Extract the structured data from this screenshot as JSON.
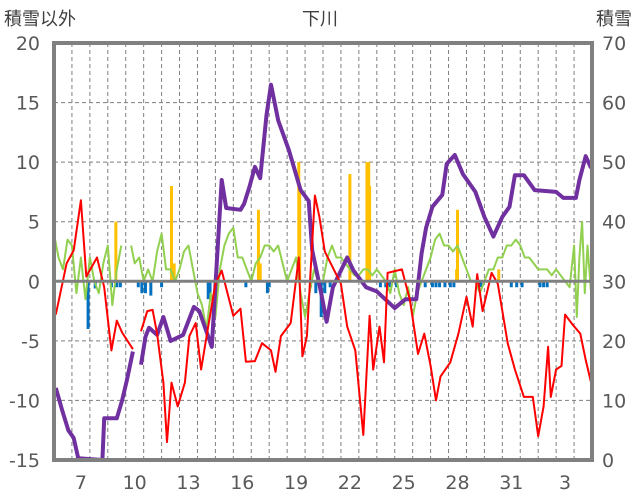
{
  "chart_data": {
    "type": "line",
    "title": "下川",
    "ylabel_left": "積雪以外",
    "ylabel_right": "積雪",
    "ylim_left": [
      -15,
      20
    ],
    "ylim_right": [
      0,
      70
    ],
    "yticks_left": [
      "20",
      "15",
      "10",
      "5",
      "0",
      "-5",
      "-10",
      "-15"
    ],
    "yticks_left_values": [
      20,
      15,
      10,
      5,
      0,
      -5,
      -10,
      -15
    ],
    "yticks_right": [
      "70",
      "60",
      "50",
      "40",
      "30",
      "20",
      "10",
      "0"
    ],
    "yticks_right_values": [
      70,
      60,
      50,
      40,
      30,
      20,
      10,
      0
    ],
    "xlim_days": [
      6,
      36
    ],
    "xticks": [
      "7",
      "10",
      "13",
      "16",
      "19",
      "22",
      "25",
      "28",
      "31",
      "3"
    ],
    "xticks_days": [
      7,
      10,
      13,
      16,
      19,
      22,
      25,
      28,
      31,
      34
    ],
    "grid": true,
    "colors": {
      "snow_depth": "#7030a0",
      "red_series": "#ff0000",
      "green_series": "#92d050",
      "positive_bars": "#ffc000",
      "negative_bars": "#0070c0",
      "axis": "#808080",
      "text": "#595959"
    },
    "series": [
      {
        "name": "snow_depth",
        "axis": "right",
        "x": [
          6.1,
          6.45,
          6.8,
          7.1,
          7.35,
          8.7,
          8.8,
          9.5,
          9.8,
          10.05,
          10.4,
          null,
          10.85,
          11.1,
          11.3,
          11.75,
          12.1,
          12.5,
          13.2,
          13.8,
          14.1,
          14.8,
          15.35,
          15.6,
          16.4,
          16.6,
          16.9,
          17.2,
          17.5,
          17.85,
          18.1,
          18.5,
          19.1,
          19.75,
          20.2,
          20.4,
          20.9,
          21.2,
          21.55,
          22.35,
          22.7,
          23.4,
          24,
          25,
          25.6,
          26.2,
          26.5,
          26.75,
          27.1,
          27.65,
          27.9,
          28.35,
          28.8,
          29.5,
          30,
          30.5,
          31,
          31.4,
          31.7,
          32.2,
          32.8,
          34,
          34.4,
          35.1,
          35.3,
          35.65,
          35.95
        ],
        "y": [
          12.1,
          8.4,
          5,
          3.7,
          0.3,
          0,
          7,
          7,
          10,
          13.2,
          18.2,
          null,
          16,
          20.7,
          22.2,
          21,
          24,
          20,
          21,
          25.7,
          25,
          19,
          47,
          42.3,
          42,
          43,
          45.9,
          49.2,
          47.3,
          57.9,
          63,
          57,
          52,
          45.3,
          43.5,
          35.2,
          28,
          23.2,
          29,
          34,
          31.8,
          29,
          28.3,
          25.5,
          27,
          27,
          34.7,
          39,
          42.5,
          44.5,
          49.7,
          51.2,
          48,
          45,
          40.8,
          37.5,
          40.8,
          42.5,
          47.8,
          47.8,
          45.3,
          45,
          44,
          44,
          47,
          51,
          49
        ]
      },
      {
        "name": "red_series",
        "axis": "left",
        "x": [
          6.1,
          6.7,
          7.1,
          7.5,
          7.8,
          8.4,
          8.8,
          9.2,
          9.5,
          9.8,
          10.4,
          null,
          10.85,
          11.2,
          11.5,
          11.75,
          12.1,
          12.3,
          12.55,
          12.9,
          13.3,
          13.55,
          13.9,
          14.2,
          14.6,
          15,
          15.35,
          16,
          16.4,
          16.7,
          17.2,
          17.6,
          18.1,
          18.35,
          18.65,
          19.2,
          19.65,
          19.85,
          20.1,
          20.55,
          20.8,
          21.1,
          22,
          22.35,
          22.8,
          23.25,
          23.6,
          23.8,
          24.15,
          24.4,
          24.6,
          25.4,
          25.85,
          26.3,
          26.65,
          27,
          27.3,
          27.55,
          28.1,
          28.55,
          29,
          29.35,
          29.6,
          29.9,
          30.4,
          30.75,
          31.3,
          31.7,
          32.2,
          32.7,
          33,
          33.3,
          33.55,
          33.7,
          34,
          34.3,
          34.5,
          34.9,
          35.35,
          35.65,
          35.95
        ],
        "y": [
          -2.8,
          1.5,
          2.6,
          6.8,
          0.4,
          2,
          -0.5,
          -5.8,
          -3.3,
          -4.3,
          -5.7,
          null,
          -4.2,
          -2.5,
          -2.4,
          -4.4,
          -8.5,
          -13.5,
          -8.5,
          -10.5,
          -8.5,
          -4.6,
          -3.5,
          -7.4,
          -3.8,
          -0.2,
          0.9,
          -2.9,
          -2.3,
          -6.75,
          -6.7,
          -5.2,
          -5.8,
          -7.6,
          -4.6,
          -3.5,
          2,
          -6.3,
          -4.6,
          7.2,
          5.4,
          2.5,
          -0.2,
          -3.8,
          -5.8,
          -12.9,
          -2.9,
          -7.4,
          -3.8,
          -6.8,
          0.7,
          1,
          -1.6,
          -6.1,
          -4.4,
          -7.1,
          -10,
          -8,
          -6.8,
          -4.4,
          -1.3,
          -3.8,
          0.6,
          -2.5,
          0.7,
          -0.2,
          -5.2,
          -7.4,
          -9.7,
          -9.7,
          -13,
          -10.5,
          -5.5,
          -9.7,
          -7.4,
          -7.1,
          -2.8,
          -3.6,
          -4.4,
          -6.6,
          -8.5
        ]
      },
      {
        "name": "green_series",
        "axis": "left",
        "x": [
          6,
          6.25,
          6.5,
          6.75,
          7,
          7.25,
          7.5,
          7.75,
          8,
          8.25,
          8.5,
          8.75,
          9,
          9.25,
          9.5,
          9.75,
          null,
          10.3,
          10.5,
          10.75,
          11,
          11.25,
          11.5,
          11.75,
          12,
          12.25,
          12.5,
          12.75,
          13,
          13.25,
          13.5,
          13.75,
          14,
          14.25,
          14.5,
          14.75,
          15,
          15.25,
          15.5,
          15.75,
          16,
          16.25,
          16.5,
          16.75,
          17,
          17.25,
          17.5,
          17.75,
          18,
          18.25,
          18.5,
          18.75,
          19,
          19.25,
          19.5,
          19.75,
          20,
          20.25,
          20.5,
          20.75,
          21,
          21.25,
          21.5,
          21.75,
          22,
          22.25,
          22.5,
          22.75,
          23,
          23.25,
          23.5,
          23.75,
          24,
          24.25,
          24.5,
          24.75,
          25,
          25.25,
          25.5,
          25.75,
          26,
          26.25,
          26.5,
          26.75,
          27,
          27.25,
          27.5,
          27.75,
          28,
          28.25,
          28.5,
          28.75,
          29,
          29.25,
          29.5,
          29.75,
          30,
          30.25,
          30.5,
          30.75,
          31,
          31.25,
          31.5,
          31.75,
          32,
          32.25,
          32.5,
          32.75,
          33,
          33.25,
          33.5,
          33.75,
          34,
          34.25,
          34.5,
          34.75,
          35,
          35.15,
          35.3,
          35.45,
          35.6,
          35.75,
          35.95
        ],
        "y": [
          4,
          2,
          1,
          3.5,
          3,
          -1,
          2,
          -1.5,
          2,
          0,
          -1,
          1.5,
          3,
          -2,
          1,
          3,
          null,
          3,
          1.5,
          2,
          0,
          1,
          0,
          2.5,
          4,
          1,
          1,
          0,
          1,
          2.5,
          3,
          1,
          -1,
          -2,
          -4,
          -1,
          -3,
          1,
          3,
          4,
          4.5,
          2,
          2,
          1,
          0,
          1.5,
          2,
          3,
          3,
          2.5,
          3,
          1.5,
          0,
          1,
          2,
          -1,
          -3,
          -1,
          1,
          0,
          0,
          2,
          3,
          2,
          2,
          1.5,
          1,
          0.5,
          0.5,
          1,
          1,
          0.5,
          1,
          0.5,
          0,
          -1,
          1,
          -1,
          -2,
          -0.5,
          -3,
          -1,
          0,
          1,
          2,
          3.5,
          4,
          3,
          3,
          2.5,
          3,
          2,
          1,
          0,
          0,
          -1,
          0,
          1,
          1,
          2,
          2,
          3,
          3,
          3.5,
          3,
          2,
          2,
          1.5,
          1,
          1,
          1,
          0.5,
          1,
          0.5,
          0,
          -0.5,
          3,
          -3,
          2,
          5,
          -1,
          3,
          -1
        ]
      },
      {
        "name": "positive_bars",
        "axis": "left",
        "type": "bar",
        "x": [
          9.45,
          12.55,
          12.7,
          17.4,
          17.5,
          19.65,
          19.7,
          22.5,
          23.45,
          23.55,
          23.6,
          28.45,
          28.5,
          30.8
        ],
        "y": [
          5,
          8,
          1.5,
          6,
          1.5,
          10,
          7.5,
          9,
          10,
          10,
          8,
          1,
          6,
          1
        ]
      },
      {
        "name": "negative_bars",
        "axis": "left",
        "type": "bar",
        "x": [
          7.9,
          8.3,
          9.2,
          9.5,
          9.7,
          10.7,
          10.9,
          11.1,
          11.4,
          12.0,
          14.6,
          14.7,
          16.7,
          17.9,
          18.0,
          20.3,
          20.6,
          20.9,
          21.1,
          21.4,
          24.2,
          24.5,
          24.7,
          25.1,
          26.7,
          27.1,
          27.3,
          27.5,
          27.8,
          28.1,
          28.3,
          29.8,
          31.5,
          31.8,
          32.1,
          33.1,
          33.3,
          33.5
        ],
        "y": [
          -4,
          -0.6,
          -0.5,
          -0.5,
          -0.5,
          -0.5,
          -1,
          -1,
          -1.2,
          -0.5,
          -1.5,
          -1,
          -0.5,
          -1,
          -0.5,
          -0.5,
          -1,
          -3,
          -1,
          -0.5,
          -0.5,
          -0.5,
          -0.5,
          -0.5,
          -0.5,
          -0.5,
          -0.5,
          -0.5,
          -0.5,
          -0.5,
          -0.5,
          -0.5,
          -0.5,
          -0.5,
          -0.5,
          -0.5,
          -0.5,
          -0.5
        ]
      }
    ]
  }
}
